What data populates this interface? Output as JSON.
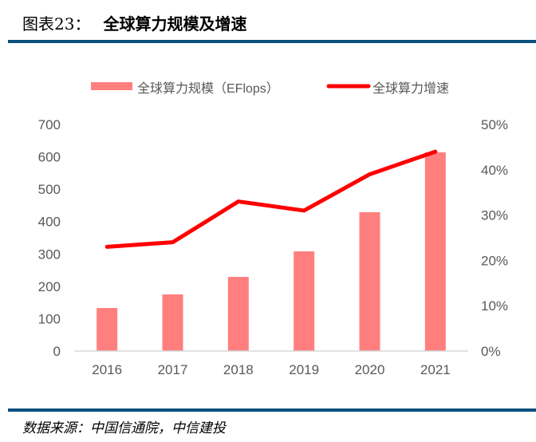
{
  "header": {
    "prefix": "图表23：",
    "title": "全球算力规模及增速"
  },
  "footer": {
    "source": "数据来源：中国信通院，中信建投"
  },
  "colors": {
    "bar": "#ff7f7f",
    "line": "#ff0000",
    "rule": "#0a4f7e",
    "axis_text": "#595959",
    "axis_line": "#d9d9d9"
  },
  "chart_data": {
    "type": "bar+line",
    "title": "全球算力规模及增速",
    "categories": [
      "2016",
      "2017",
      "2018",
      "2019",
      "2020",
      "2021"
    ],
    "series": [
      {
        "name": "全球算力规模（EFlops）",
        "type": "bar",
        "axis": "left",
        "values": [
          133,
          175,
          229,
          308,
          429,
          614
        ]
      },
      {
        "name": "全球算力增速",
        "type": "line",
        "axis": "right",
        "values": [
          23,
          24,
          33,
          31,
          39,
          44
        ],
        "unit": "%"
      }
    ],
    "y_left": {
      "lim": [
        0,
        700
      ],
      "ticks": [
        "0",
        "100",
        "200",
        "300",
        "400",
        "500",
        "600",
        "700"
      ]
    },
    "y_right": {
      "lim": [
        0,
        50
      ],
      "ticks": [
        "0%",
        "10%",
        "20%",
        "30%",
        "40%",
        "50%"
      ]
    },
    "legend_position": "top",
    "grid": false
  }
}
